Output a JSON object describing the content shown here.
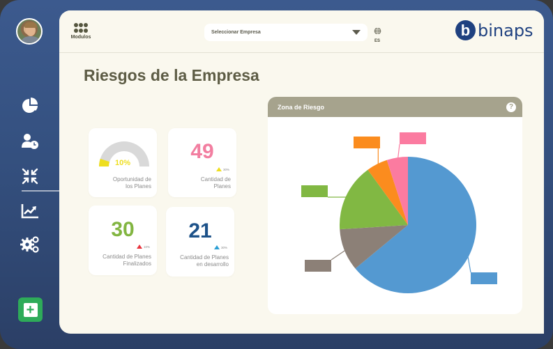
{
  "sidebar": {
    "avatar_alt": "user avatar",
    "items": [
      {
        "id": "dashboard",
        "icon": "pie-chart-icon"
      },
      {
        "id": "users-time",
        "icon": "user-clock-icon"
      },
      {
        "id": "compress",
        "icon": "compress-arrows-icon"
      },
      {
        "id": "analytics",
        "icon": "trend-chart-icon"
      },
      {
        "id": "settings",
        "icon": "gears-icon"
      }
    ],
    "add_button_icon": "plus-square-icon"
  },
  "topbar": {
    "modules_label": "Modulos",
    "company_select_placeholder": "Seleccionar Empresa",
    "language_code": "ES",
    "logo_text": "binaps",
    "logo_mark": "b"
  },
  "page": {
    "title": "Riesgos de la Empresa"
  },
  "kpis": [
    {
      "id": "oportunidad",
      "type": "gauge",
      "value": "10%",
      "value_num": 10,
      "label_line1": "Oportunidad de",
      "label_line2": "los Planes",
      "color": "#eede1f"
    },
    {
      "id": "cantidad",
      "value": "49",
      "trend": "30%",
      "trend_dir": "up",
      "trend_color": "#eede1f",
      "label_line1": "Cantidad de",
      "label_line2": "Planes",
      "color": "#f27ea0"
    },
    {
      "id": "finalizados",
      "value": "30",
      "trend": "10%",
      "trend_dir": "up",
      "trend_color": "#e8333d",
      "label_line1": "Cantidad de Planes",
      "label_line2": "Finalizados",
      "color": "#82b541"
    },
    {
      "id": "desarrollo",
      "value": "21",
      "trend": "30%",
      "trend_dir": "up",
      "trend_color": "#2c9fd4",
      "label_line1": "Cantidad de Planes",
      "label_line2": "en desarrollo",
      "color": "#1d5289"
    }
  ],
  "risk_chart": {
    "title": "Zona de Riesgo",
    "help_icon": "?"
  },
  "chart_data": {
    "type": "pie",
    "title": "Zona de Riesgo",
    "categories": [
      "Blue",
      "Brown",
      "Green",
      "Orange",
      "Pink"
    ],
    "values": [
      64,
      10,
      16,
      5,
      5
    ],
    "colors": [
      "#5499d1",
      "#8c8077",
      "#81b843",
      "#fb8c1e",
      "#fb7ba0"
    ],
    "labels_visible": false,
    "legend": "none"
  }
}
